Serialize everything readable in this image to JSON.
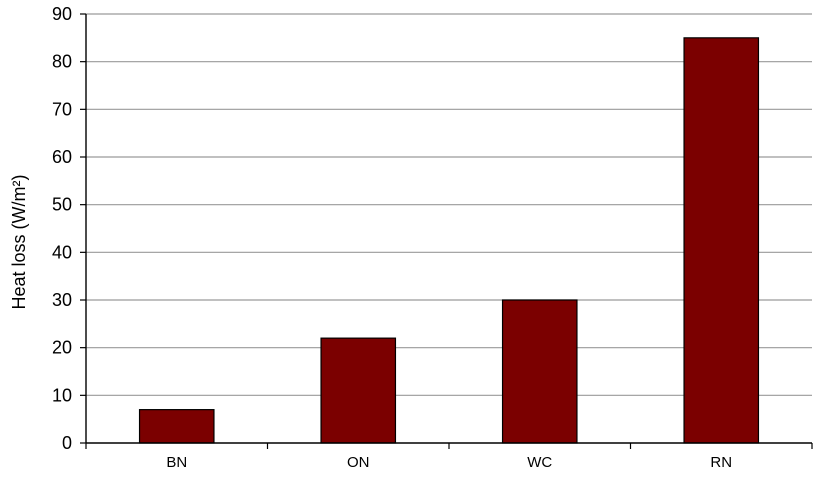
{
  "chart_data": {
    "type": "bar",
    "title": "",
    "xlabel": "",
    "ylabel": "Heat loss (W/m²)",
    "categories": [
      "BN",
      "ON",
      "WC",
      "RN"
    ],
    "values": [
      7,
      22,
      30,
      85
    ],
    "ylim": [
      0,
      90
    ],
    "yticks": [
      0,
      10,
      20,
      30,
      40,
      50,
      60,
      70,
      80,
      90
    ],
    "ytick_labels": [
      "0",
      "10",
      "20",
      "30",
      "40",
      "50",
      "60",
      "70",
      "80",
      "90"
    ],
    "grid": true,
    "legend": "none",
    "colors": {
      "bar": "#7b0000",
      "bar_edge": "#000000",
      "grid": "#9a9a9a",
      "axis": "#000000"
    }
  }
}
